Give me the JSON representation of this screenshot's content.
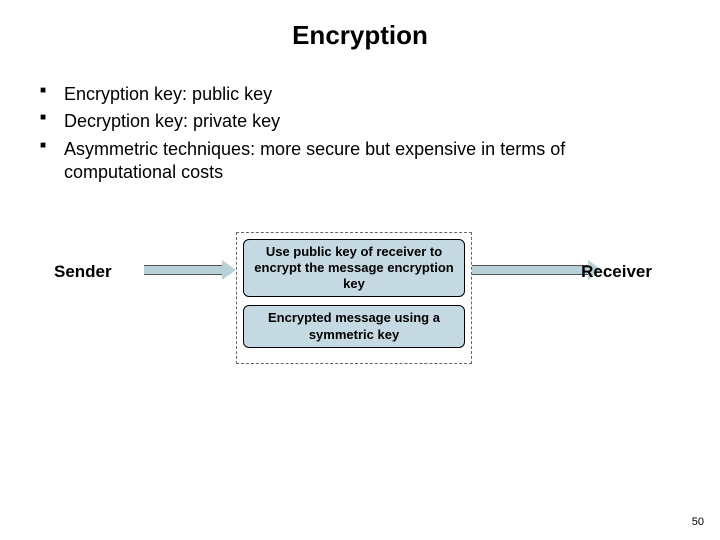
{
  "title": {
    "text": "Encryption",
    "fontsize": 26,
    "color": "#000000"
  },
  "bullets": {
    "items": [
      "Encryption key: public key",
      "Decryption key: private key",
      "Asymmetric techniques: more secure but expensive in terms of computational costs"
    ],
    "fontsize": 18,
    "color": "#000000"
  },
  "diagram": {
    "sender_label": "Sender",
    "receiver_label": "Receiver",
    "label_fontsize": 17,
    "box1_text": "Use public key of receiver to encrypt the message encryption key",
    "box2_text": "Encrypted message using a symmetric key",
    "box_fontsize": 13,
    "box_fill": "#c5d9e2",
    "box_border": "#000000",
    "dashed_border": "#666666",
    "arrow_fill": "#b8d1d9",
    "arrow_border": "#555555"
  },
  "page_number": {
    "text": "50",
    "fontsize": 11,
    "color": "#000000"
  },
  "background": "#ffffff"
}
